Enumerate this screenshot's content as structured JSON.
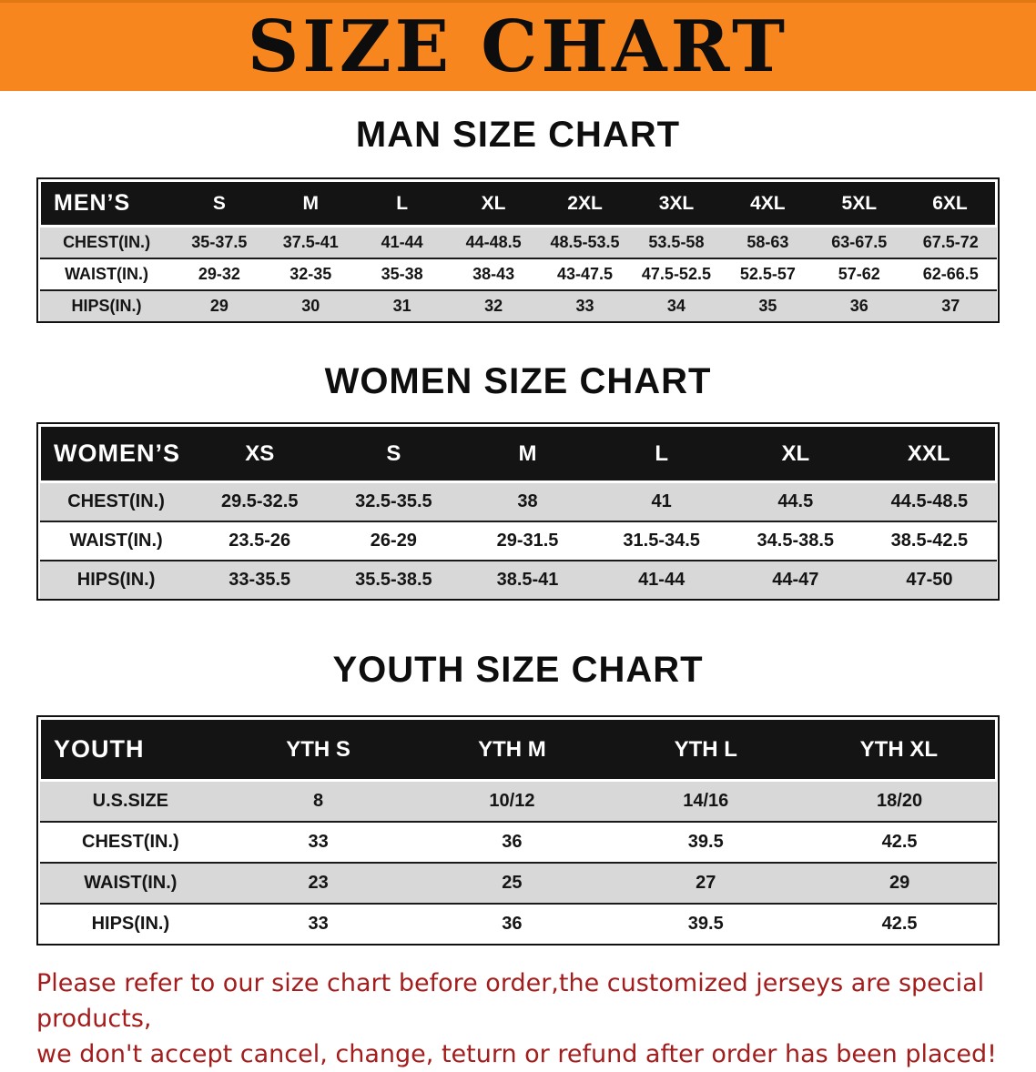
{
  "banner": {
    "title": "SIZE CHART"
  },
  "colors": {
    "banner_orange": "#F6861D",
    "header_black": "#141414",
    "row_gray": "#D8D8D8",
    "disclaimer_red": "#A31D1D"
  },
  "sections": [
    {
      "heading": "MAN SIZE CHART",
      "table": {
        "header": [
          "MEN’S",
          "S",
          "M",
          "L",
          "XL",
          "2XL",
          "3XL",
          "4XL",
          "5XL",
          "6XL"
        ],
        "rows": [
          [
            "CHEST(IN.)",
            "35-37.5",
            "37.5-41",
            "41-44",
            "44-48.5",
            "48.5-53.5",
            "53.5-58",
            "58-63",
            "63-67.5",
            "67.5-72"
          ],
          [
            "WAIST(IN.)",
            "29-32",
            "32-35",
            "35-38",
            "38-43",
            "43-47.5",
            "47.5-52.5",
            "52.5-57",
            "57-62",
            "62-66.5"
          ],
          [
            "HIPS(IN.)",
            "29",
            "30",
            "31",
            "32",
            "33",
            "34",
            "35",
            "36",
            "37"
          ]
        ]
      }
    },
    {
      "heading": "WOMEN SIZE CHART",
      "table": {
        "header": [
          "WOMEN’S",
          "XS",
          "S",
          "M",
          "L",
          "XL",
          "XXL"
        ],
        "rows": [
          [
            "CHEST(IN.)",
            "29.5-32.5",
            "32.5-35.5",
            "38",
            "41",
            "44.5",
            "44.5-48.5"
          ],
          [
            "WAIST(IN.)",
            "23.5-26",
            "26-29",
            "29-31.5",
            "31.5-34.5",
            "34.5-38.5",
            "38.5-42.5"
          ],
          [
            "HIPS(IN.)",
            "33-35.5",
            "35.5-38.5",
            "38.5-41",
            "41-44",
            "44-47",
            "47-50"
          ]
        ]
      }
    },
    {
      "heading": "YOUTH SIZE CHART",
      "table": {
        "header": [
          "YOUTH",
          "YTH S",
          "YTH M",
          "YTH L",
          "YTH XL"
        ],
        "rows": [
          [
            "U.S.SIZE",
            "8",
            "10/12",
            "14/16",
            "18/20"
          ],
          [
            "CHEST(IN.)",
            "33",
            "36",
            "39.5",
            "42.5"
          ],
          [
            "WAIST(IN.)",
            "23",
            "25",
            "27",
            "29"
          ],
          [
            "HIPS(IN.)",
            "33",
            "36",
            "39.5",
            "42.5"
          ]
        ]
      }
    }
  ],
  "disclaimer": {
    "lines": [
      "Please refer to our size chart before order,the customized jerseys are special products,",
      "we don't accept cancel, change, teturn or refund after order has been placed!"
    ]
  }
}
